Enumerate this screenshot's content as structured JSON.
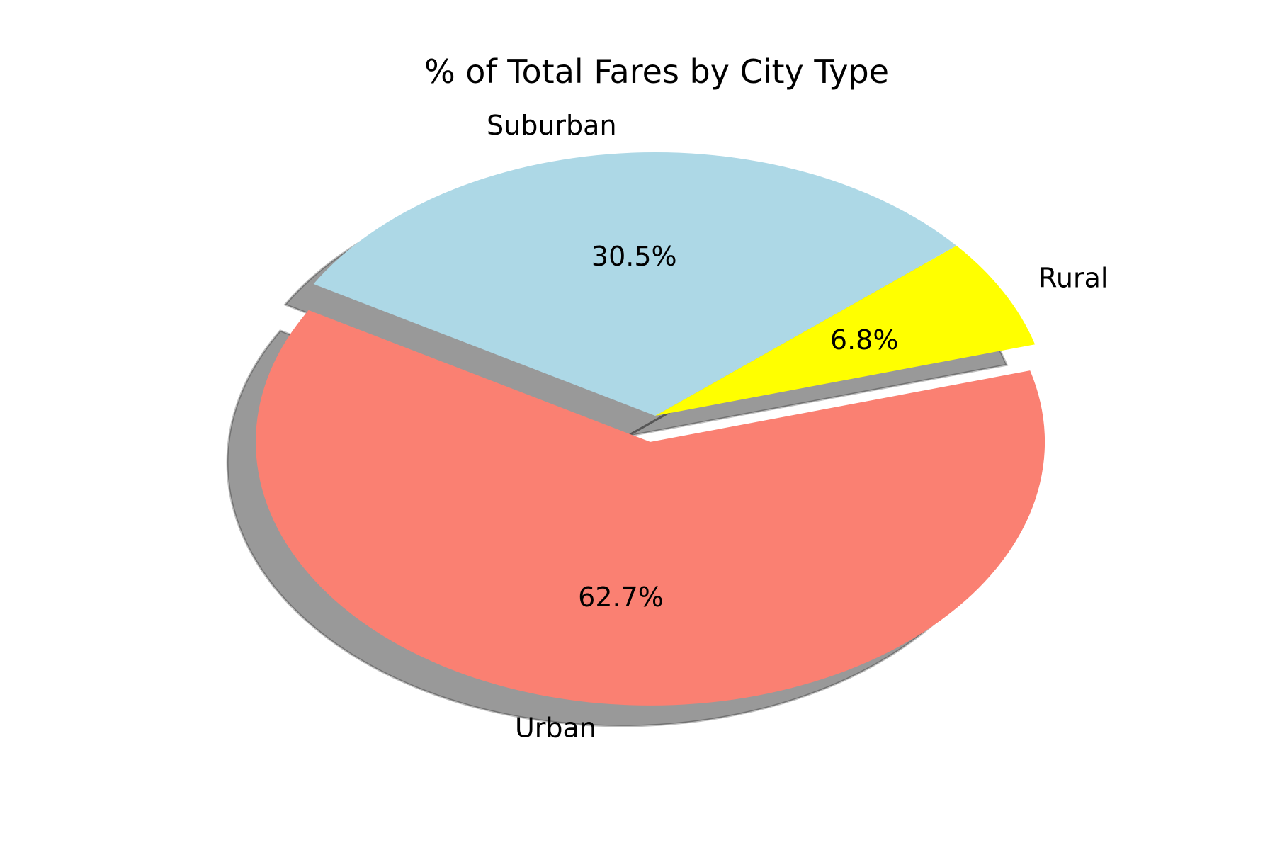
{
  "chart_data": {
    "type": "pie",
    "title": "% of Total Fares by City Type",
    "categories": [
      "Urban",
      "Rural",
      "Suburban"
    ],
    "values": [
      62.7,
      6.8,
      30.5
    ],
    "value_labels": [
      "62.7%",
      "6.8%",
      "30.5%"
    ],
    "colors": [
      "#fa8072",
      "#ffff00",
      "#add8e6"
    ],
    "explode": [
      0.1,
      0,
      0
    ],
    "shadow": true,
    "start_angle_deg": 150,
    "legend": "none"
  }
}
